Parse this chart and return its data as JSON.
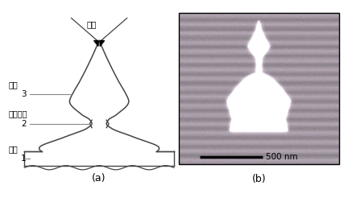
{
  "title_a": "(a)",
  "title_b": "(b)",
  "label_cone_angle": "锥角",
  "label_1": "1",
  "label_2": "2",
  "label_3": "3",
  "label_tip": "尖锥",
  "label_nano": "纳米沟道",
  "label_substrate": "衬底",
  "scale_label": "500 nm",
  "line_color": "#444444",
  "label_color": "#555555"
}
